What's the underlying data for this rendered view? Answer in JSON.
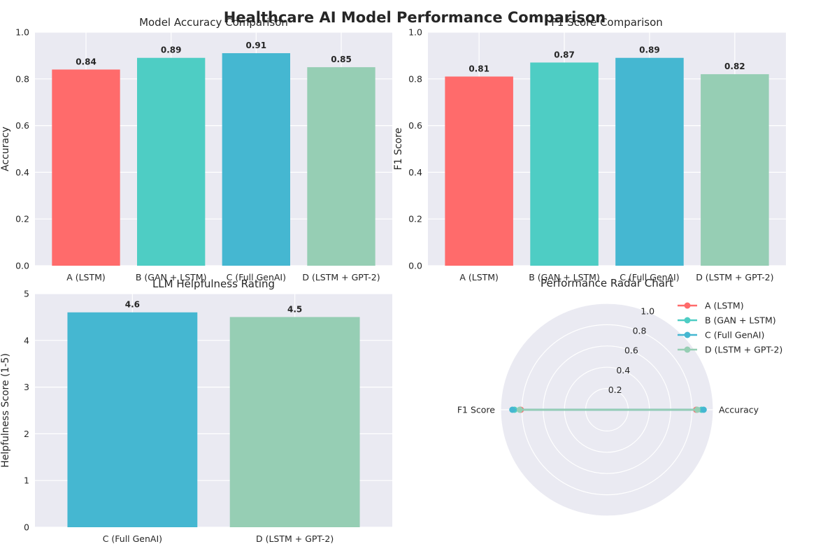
{
  "figure_title": "Healthcare AI Model Performance Comparison",
  "colors": {
    "A (LSTM)": "#FF6B6B",
    "B (GAN + LSTM)": "#4ECDC4",
    "C (Full GenAI)": "#45B7D1",
    "D (LSTM + GPT-2)": "#96CEB4",
    "plot_background": "#EAEAF2",
    "grid": "#FFFFFF"
  },
  "chart_data": [
    {
      "type": "bar",
      "title": "Model Accuracy Comparison",
      "xlabel": "",
      "ylabel": "Accuracy",
      "categories": [
        "A (LSTM)",
        "B (GAN + LSTM)",
        "C (Full GenAI)",
        "D (LSTM + GPT-2)"
      ],
      "values": [
        0.84,
        0.89,
        0.91,
        0.85
      ],
      "value_labels": [
        "0.84",
        "0.89",
        "0.91",
        "0.85"
      ],
      "ylim": [
        0,
        1.0
      ],
      "yticks": [
        "0.0",
        "0.2",
        "0.4",
        "0.6",
        "0.8",
        "1.0"
      ],
      "grid": true
    },
    {
      "type": "bar",
      "title": "F1 Score Comparison",
      "xlabel": "",
      "ylabel": "F1 Score",
      "categories": [
        "A (LSTM)",
        "B (GAN + LSTM)",
        "C (Full GenAI)",
        "D (LSTM + GPT-2)"
      ],
      "values": [
        0.81,
        0.87,
        0.89,
        0.82
      ],
      "value_labels": [
        "0.81",
        "0.87",
        "0.89",
        "0.82"
      ],
      "ylim": [
        0,
        1.0
      ],
      "yticks": [
        "0.0",
        "0.2",
        "0.4",
        "0.6",
        "0.8",
        "1.0"
      ],
      "grid": true
    },
    {
      "type": "bar",
      "title": "LLM Helpfulness Rating",
      "xlabel": "",
      "ylabel": "Helpfulness Score (1-5)",
      "categories": [
        "C (Full GenAI)",
        "D (LSTM + GPT-2)"
      ],
      "values": [
        4.6,
        4.5
      ],
      "value_labels": [
        "4.6",
        "4.5"
      ],
      "ylim": [
        0,
        5
      ],
      "yticks": [
        "0",
        "1",
        "2",
        "3",
        "4",
        "5"
      ],
      "grid": true
    },
    {
      "type": "radar",
      "title": "Performance Radar Chart",
      "axes": [
        "Accuracy",
        "F1 Score"
      ],
      "rlim": [
        0,
        1.0
      ],
      "rticks": [
        "0.2",
        "0.4",
        "0.6",
        "0.8",
        "1.0"
      ],
      "legend_position": "top-right",
      "series": [
        {
          "name": "A (LSTM)",
          "values": [
            0.84,
            0.81
          ]
        },
        {
          "name": "B (GAN + LSTM)",
          "values": [
            0.89,
            0.87
          ]
        },
        {
          "name": "C (Full GenAI)",
          "values": [
            0.91,
            0.89
          ]
        },
        {
          "name": "D (LSTM + GPT-2)",
          "values": [
            0.85,
            0.82
          ]
        }
      ]
    }
  ]
}
